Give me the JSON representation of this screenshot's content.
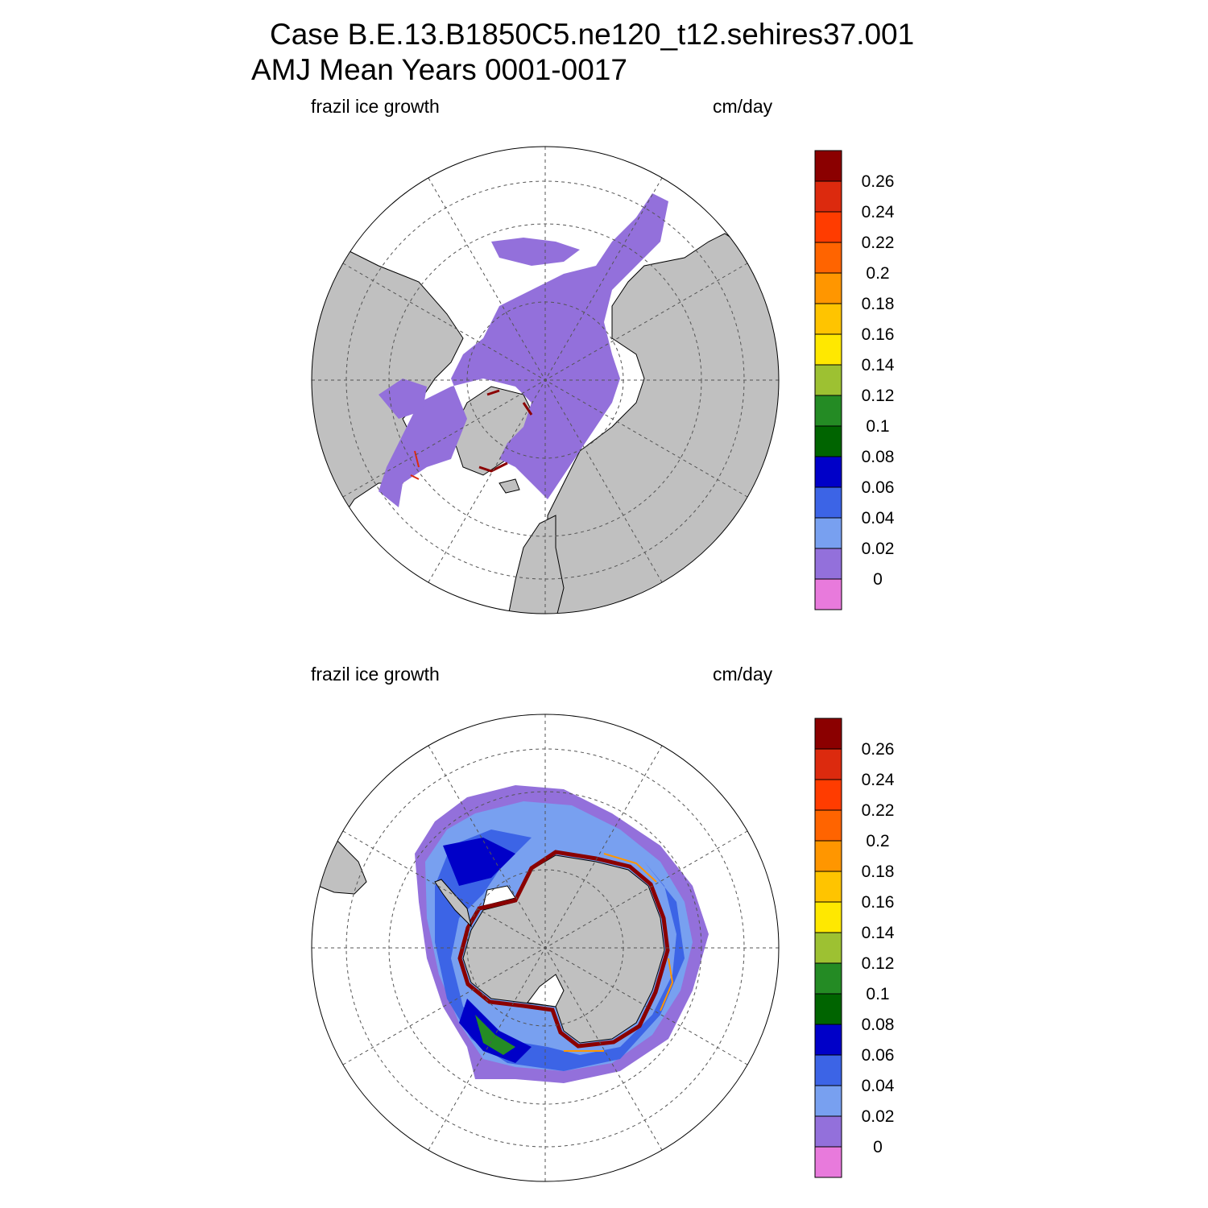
{
  "title": {
    "line1": "Case B.E.13.B1850C5.ne120_t12.sehires37.001",
    "line2": "AMJ Mean   Years 0001-0017"
  },
  "panels": [
    {
      "id": "north",
      "variable_label": "frazil ice growth",
      "units_label": "cm/day",
      "hemisphere": "Northern",
      "projection": "north-polar-stereographic"
    },
    {
      "id": "south",
      "variable_label": "frazil ice growth",
      "units_label": "cm/day",
      "hemisphere": "Southern",
      "projection": "south-polar-stereographic"
    }
  ],
  "colorbar": {
    "orientation": "vertical",
    "placement": "right-of-map",
    "tick_labels": [
      "0.26",
      "0.24",
      "0.22",
      "0.2",
      "0.18",
      "0.16",
      "0.14",
      "0.12",
      "0.1",
      "0.08",
      "0.06",
      "0.04",
      "0.02",
      "0"
    ],
    "colors_top_to_bottom": [
      "#8b0000",
      "#dc2a0e",
      "#ff3c00",
      "#ff6400",
      "#ff9600",
      "#ffc400",
      "#ffe800",
      "#9dc132",
      "#248b24",
      "#006400",
      "#0000c8",
      "#3c64e6",
      "#78a0f0",
      "#9370db",
      "#e87adc"
    ]
  },
  "colors": {
    "land": "#c0c0c0",
    "ocean": "#ffffff",
    "coast": "#000000",
    "grid": "#555555",
    "ice_zero_fill": "#9370db"
  }
}
